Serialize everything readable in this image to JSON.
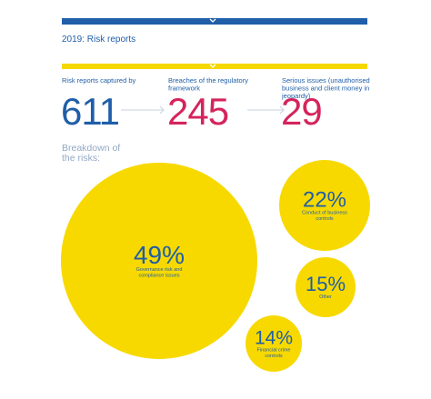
{
  "header": {
    "title": "2019: Risk reports"
  },
  "stats": [
    {
      "label": [
        "Risk reports captured by"
      ],
      "value": "611"
    },
    {
      "label": [
        "Breaches of the regulatory",
        "framework"
      ],
      "value": "245"
    },
    {
      "label": [
        "Serious issues (unauthorised",
        "business and client money in",
        "jeopardy)"
      ],
      "value": "29"
    }
  ],
  "breakdown": {
    "title": [
      "Breakdown of",
      "the risks:"
    ],
    "items": [
      {
        "value": "49%",
        "label": [
          "Governance risk and",
          "compliance issues"
        ]
      },
      {
        "value": "22%",
        "label": [
          "Conduct of business",
          "controls"
        ]
      },
      {
        "value": "15%",
        "label": [
          "Other"
        ]
      },
      {
        "value": "14%",
        "label": [
          "Financial crime",
          "controls"
        ]
      }
    ]
  }
}
